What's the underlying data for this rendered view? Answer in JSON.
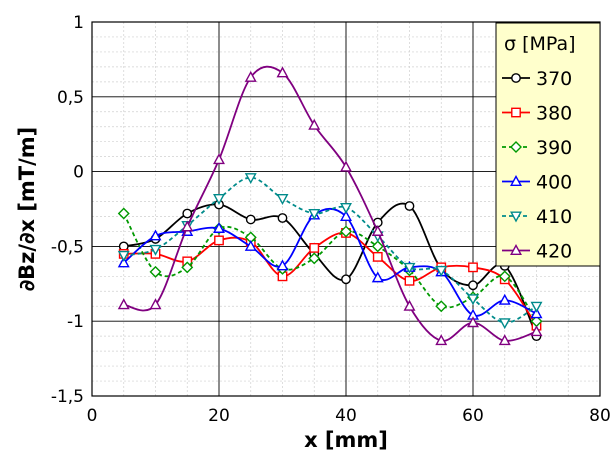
{
  "chart_data": {
    "type": "line",
    "xlabel": "x [mm]",
    "ylabel": "∂Bz/∂x [mT/m]",
    "xlim": [
      0,
      80
    ],
    "ylim": [
      -1.5,
      1
    ],
    "xticks": [
      "0",
      "20",
      "40",
      "60",
      "80"
    ],
    "yticks": [
      "-1,5",
      "-1",
      "-0,5",
      "0",
      "0,5",
      "1"
    ],
    "grid": true,
    "legend": {
      "title": "σ [MPa]",
      "placement": "top-right"
    },
    "x": [
      5,
      10,
      15,
      20,
      25,
      30,
      35,
      40,
      45,
      50,
      55,
      60,
      65,
      70
    ],
    "series": [
      {
        "name": "370",
        "color": "#000000",
        "marker": "circle",
        "values": [
          -0.5,
          -0.45,
          -0.28,
          -0.22,
          -0.32,
          -0.31,
          -0.55,
          -0.72,
          -0.34,
          -0.23,
          -0.65,
          -0.76,
          -0.63,
          -1.1
        ]
      },
      {
        "name": "380",
        "color": "#ff0000",
        "marker": "square",
        "values": [
          -0.55,
          -0.55,
          -0.6,
          -0.46,
          -0.47,
          -0.7,
          -0.51,
          -0.41,
          -0.57,
          -0.73,
          -0.64,
          -0.64,
          -0.72,
          -1.03
        ]
      },
      {
        "name": "390",
        "color": "#009900",
        "marker": "diamond",
        "values": [
          -0.28,
          -0.67,
          -0.64,
          -0.38,
          -0.44,
          -0.65,
          -0.58,
          -0.4,
          -0.5,
          -0.66,
          -0.9,
          -0.84,
          -0.7,
          -1.0
        ]
      },
      {
        "name": "400",
        "color": "#0000ff",
        "marker": "triangle-up",
        "values": [
          -0.61,
          -0.43,
          -0.4,
          -0.38,
          -0.5,
          -0.63,
          -0.29,
          -0.3,
          -0.71,
          -0.64,
          -0.67,
          -0.96,
          -0.86,
          -0.95
        ]
      },
      {
        "name": "410",
        "color": "#008b8b",
        "marker": "triangle-down",
        "values": [
          -0.56,
          -0.52,
          -0.36,
          -0.18,
          -0.04,
          -0.18,
          -0.28,
          -0.24,
          -0.43,
          -0.64,
          -0.66,
          -0.85,
          -1.01,
          -0.9
        ]
      },
      {
        "name": "420",
        "color": "#800080",
        "marker": "triangle-up",
        "values": [
          -0.89,
          -0.89,
          -0.37,
          0.08,
          0.63,
          0.66,
          0.31,
          0.03,
          -0.4,
          -0.9,
          -1.13,
          -1.01,
          -1.13,
          -1.07
        ]
      }
    ]
  }
}
